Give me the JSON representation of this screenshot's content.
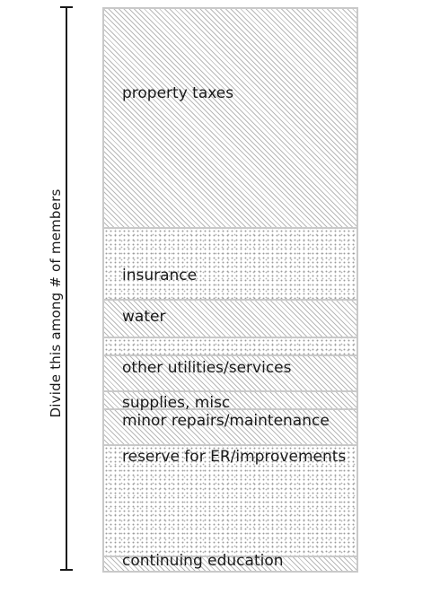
{
  "side_label": "Divide this among # of members",
  "segments": [
    {
      "label": "property taxes",
      "pattern": "hatch"
    },
    {
      "label": "insurance",
      "pattern": "dots"
    },
    {
      "label": "water",
      "pattern": "hatch"
    },
    {
      "label": "",
      "pattern": "dots"
    },
    {
      "label": "other utilities/services",
      "pattern": "hatch"
    },
    {
      "label": "supplies, misc",
      "pattern": "hatch"
    },
    {
      "label": "minor repairs/maintenance",
      "pattern": "hatch"
    },
    {
      "label": "reserve for ER/improvements",
      "pattern": "dots"
    },
    {
      "label": "continuing education",
      "pattern": "hatch"
    }
  ]
}
